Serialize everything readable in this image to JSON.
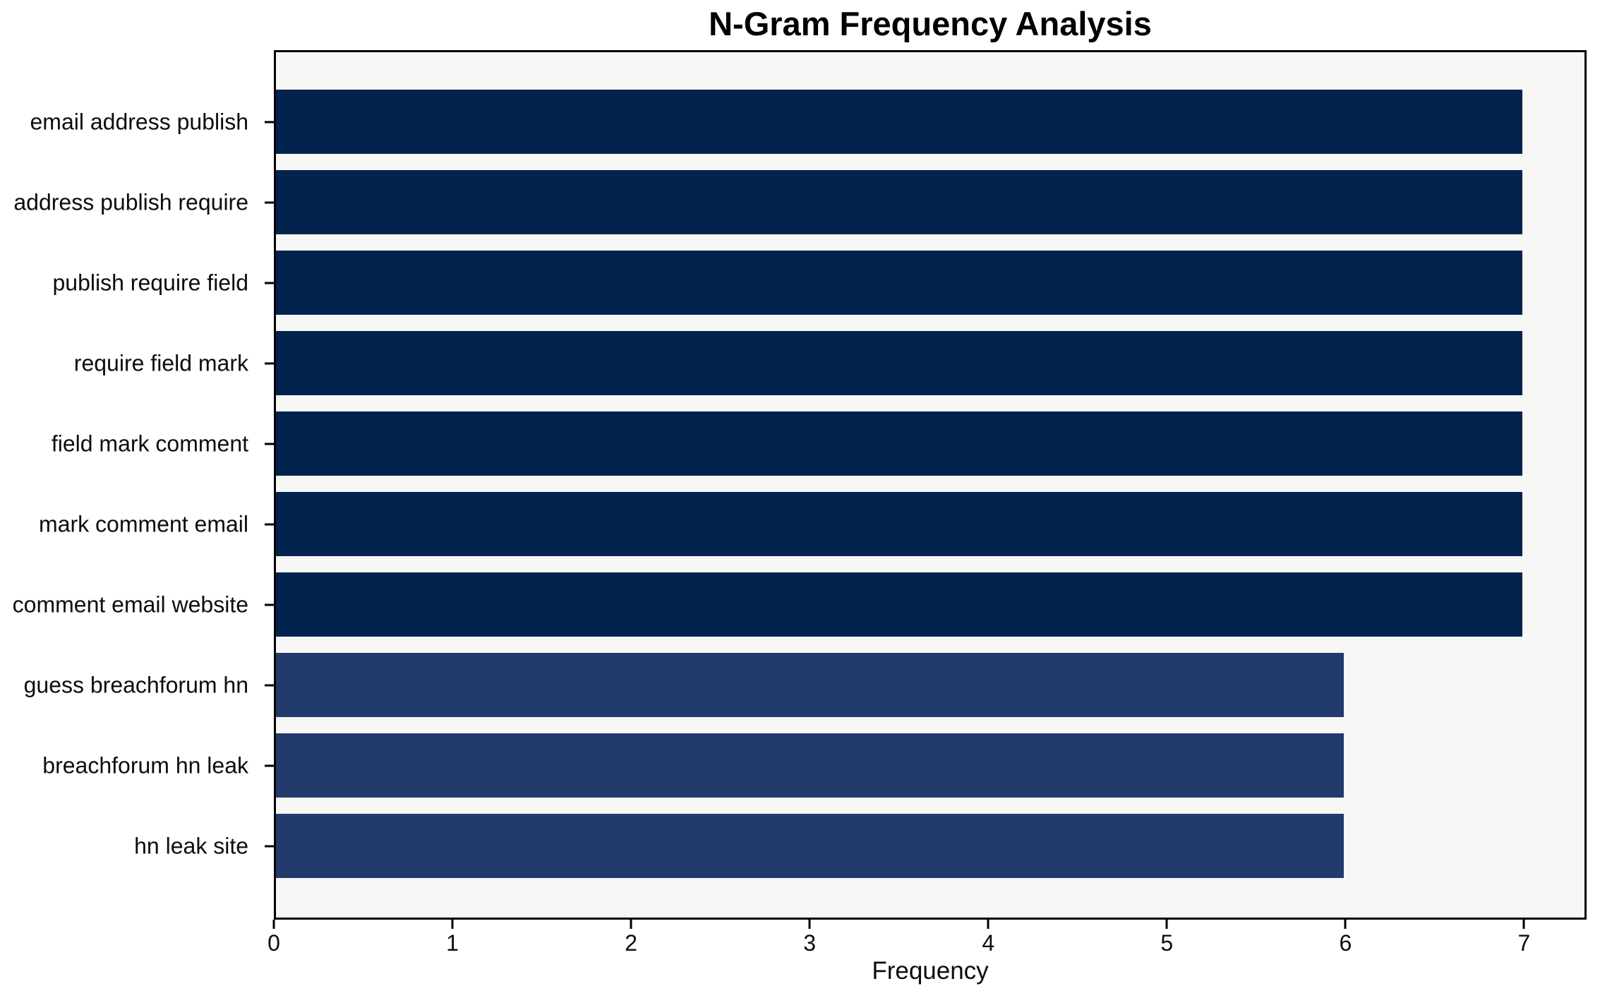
{
  "chart_data": {
    "type": "bar",
    "orientation": "horizontal",
    "title": "N-Gram Frequency Analysis",
    "xlabel": "Frequency",
    "ylabel": "",
    "categories": [
      "email address publish",
      "address publish require",
      "publish require field",
      "require field mark",
      "field mark comment",
      "mark comment email",
      "comment email website",
      "guess breachforum hn",
      "breachforum hn leak",
      "hn leak site"
    ],
    "values": [
      7,
      7,
      7,
      7,
      7,
      7,
      7,
      6,
      6,
      6
    ],
    "bar_colors": [
      "#02234d",
      "#02234d",
      "#02234d",
      "#02234d",
      "#02234d",
      "#02234d",
      "#02234d",
      "#223b6c",
      "#223b6c",
      "#223b6c"
    ],
    "x_ticks": [
      0,
      1,
      2,
      3,
      4,
      5,
      6,
      7
    ],
    "xlim": [
      0,
      7.35
    ],
    "grid": false,
    "legend": null,
    "plot_background": "#f7f7f6",
    "figure_background": "#ffffff",
    "frame_color": "#000000"
  }
}
